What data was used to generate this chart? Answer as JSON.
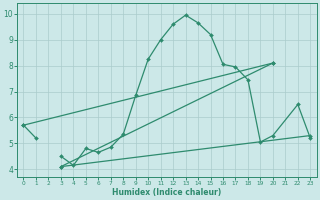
{
  "xlabel": "Humidex (Indice chaleur)",
  "color": "#2e8b6e",
  "bg_color": "#cce8e8",
  "grid_color": "#aacccc",
  "ylim": [
    3.7,
    10.4
  ],
  "xlim": [
    -0.5,
    23.5
  ],
  "yticks": [
    4,
    5,
    6,
    7,
    8,
    9,
    10
  ],
  "xticks": [
    0,
    1,
    2,
    3,
    4,
    5,
    6,
    7,
    8,
    9,
    10,
    11,
    12,
    13,
    14,
    15,
    16,
    17,
    18,
    19,
    20,
    21,
    22,
    23
  ],
  "main_curve_x": [
    0,
    1,
    3,
    4,
    5,
    6,
    7,
    8,
    9,
    10,
    11,
    12,
    13,
    14,
    15,
    16,
    17,
    18,
    19,
    20,
    22,
    23
  ],
  "main_curve_y": [
    5.7,
    5.2,
    4.5,
    4.15,
    4.8,
    4.65,
    4.85,
    5.35,
    6.85,
    8.25,
    9.0,
    9.6,
    9.95,
    9.65,
    9.2,
    8.05,
    7.95,
    7.45,
    5.05,
    5.3,
    6.5,
    5.2
  ],
  "diag_line_x": [
    0,
    20
  ],
  "diag_line_y": [
    5.7,
    8.1
  ],
  "diag_line2_x": [
    3,
    20
  ],
  "diag_line2_y": [
    4.1,
    8.1
  ],
  "flat_line_x": [
    3,
    23
  ],
  "flat_line_y": [
    4.1,
    5.3
  ]
}
